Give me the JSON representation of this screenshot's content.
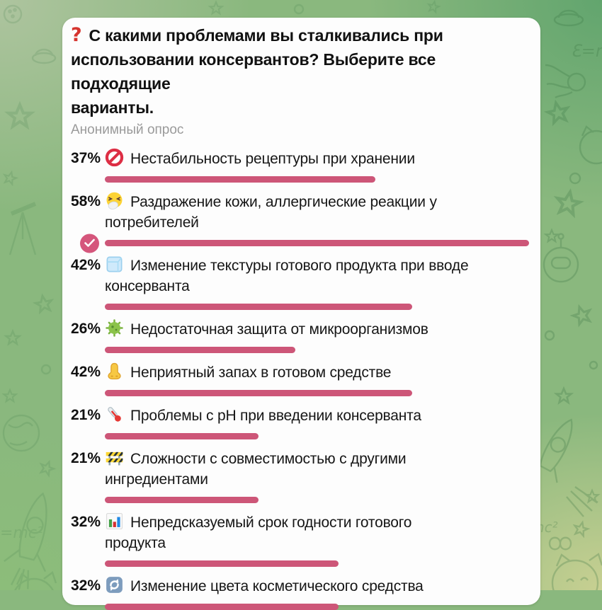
{
  "poll": {
    "question_icon_char": "?",
    "question": "С какими проблемами вы сталкивались при\nиспользовании консервантов? Выберите все подходящие\nварианты.",
    "subtitle": "Анонимный опрос",
    "accent_color": "#cd5678",
    "max_percent": 58,
    "options": [
      {
        "percent": "37%",
        "value": 37,
        "icon": "no-entry",
        "label": "Нестабильность рецептуры при хранении",
        "voted": false
      },
      {
        "percent": "58%",
        "value": 58,
        "icon": "sneezing-face",
        "label": "Раздражение кожи, аллергические реакции у\nпотребителей",
        "voted": true
      },
      {
        "percent": "42%",
        "value": 42,
        "icon": "ice-cube",
        "label": "Изменение текстуры готового продукта при вводе\nконсерванта",
        "voted": false
      },
      {
        "percent": "26%",
        "value": 26,
        "icon": "microbe",
        "label": "Недостаточная защита от микроорганизмов",
        "voted": false
      },
      {
        "percent": "42%",
        "value": 42,
        "icon": "nose",
        "label": "Неприятный запах в готовом средстве",
        "voted": false
      },
      {
        "percent": "21%",
        "value": 21,
        "icon": "thermometer",
        "label": "Проблемы с pH при введении консерванта",
        "voted": false
      },
      {
        "percent": "21%",
        "value": 21,
        "icon": "construction",
        "label": "Сложности с совместимостью с другими\nингредиентами",
        "voted": false
      },
      {
        "percent": "32%",
        "value": 32,
        "icon": "bar-chart",
        "label": "Непредсказуемый срок годности готового\nпродукта",
        "voted": false
      },
      {
        "percent": "32%",
        "value": 32,
        "icon": "arrows-cycle",
        "label": "Изменение цвета косметического средства",
        "voted": false
      }
    ]
  },
  "background": {
    "corner_colors": {
      "top_left": "#aec49f",
      "top_right": "#62a56e",
      "bottom_right": "#c8d092",
      "bottom_left": "#8cbd7a"
    },
    "doodle_text_left": "=mc²",
    "doodle_text_right": "Ɛ=m"
  }
}
